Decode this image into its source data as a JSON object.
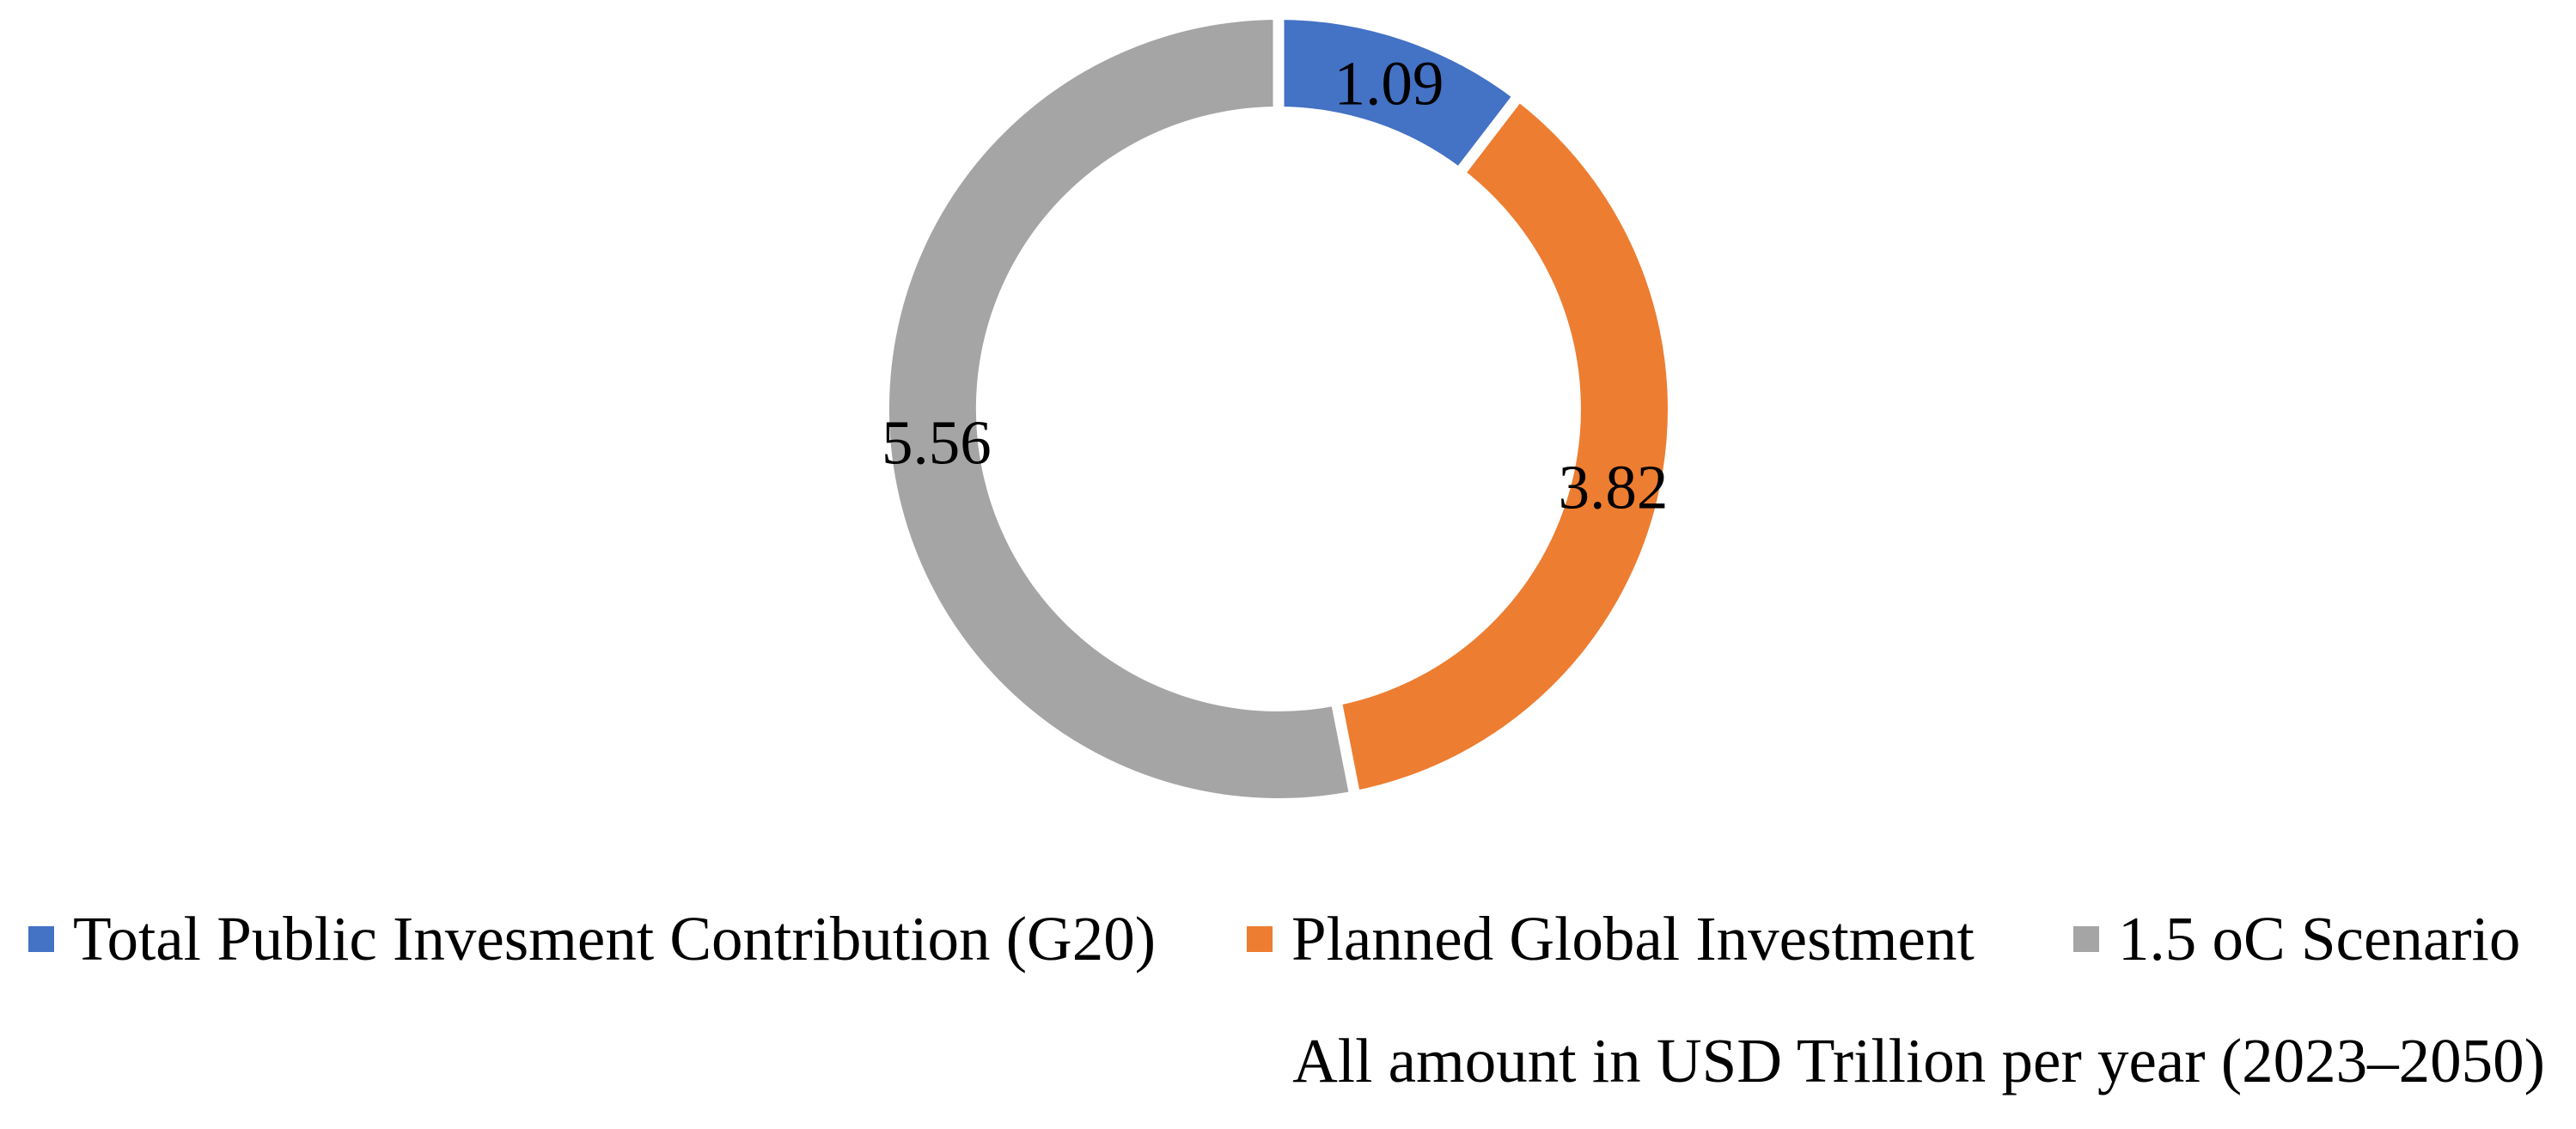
{
  "chart_data": {
    "type": "pie",
    "subtype": "donut",
    "title": "",
    "legend_position": "bottom",
    "direction": "clockwise",
    "start_angle_deg": 0,
    "hole_ratio": 0.78,
    "slices": [
      {
        "label": "Total Public Invesment Contribution (G20)",
        "value": 1.09,
        "data_label": "1.09",
        "color": "#4472C4"
      },
      {
        "label": "Planned Global Investment",
        "value": 3.82,
        "data_label": "3.82",
        "color": "#ED7D31"
      },
      {
        "label": "1.5 oC Scenario",
        "value": 5.56,
        "data_label": "5.56",
        "color": "#A5A5A5"
      }
    ],
    "unit_note": "All amount in USD Trillion per year (2023–2050)"
  },
  "colors": {
    "background": "#FFFFFF",
    "separator": "#FFFFFF",
    "label_text": "#000000"
  }
}
